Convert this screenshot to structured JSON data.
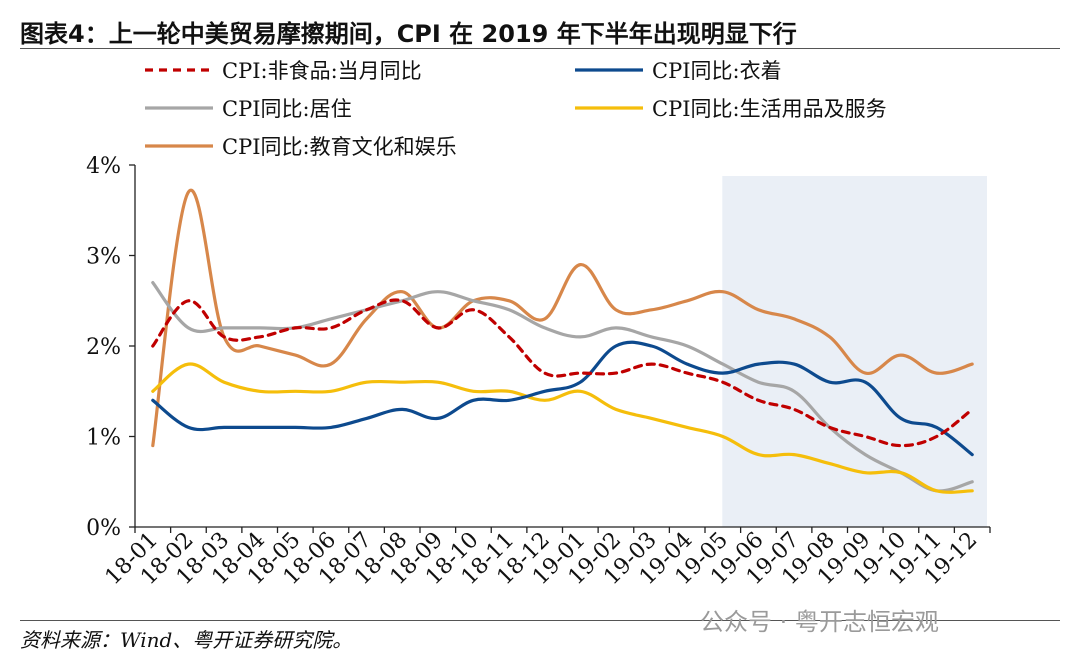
{
  "header": {
    "title": "图表4：上一轮中美贸易摩擦期间，CPI 在 2019 年下半年出现明显下行"
  },
  "footer": {
    "source": "资料来源：Wind、粤开证券研究院。",
    "watermark": "公众号 · 粤开志恒宏观"
  },
  "chart_data": {
    "type": "line",
    "title": "",
    "xlabel": "",
    "ylabel": "",
    "ylim": [
      0,
      4
    ],
    "yticks": [
      "0%",
      "1%",
      "2%",
      "3%",
      "4%"
    ],
    "grid": false,
    "legend_position": "top",
    "highlight_region": [
      "19-05",
      "19-12"
    ],
    "categories": [
      "18-01",
      "18-02",
      "18-03",
      "18-04",
      "18-05",
      "18-06",
      "18-07",
      "18-08",
      "18-09",
      "18-10",
      "18-11",
      "18-12",
      "19-01",
      "19-02",
      "19-03",
      "19-04",
      "19-05",
      "19-06",
      "19-07",
      "19-08",
      "19-09",
      "19-10",
      "19-11",
      "19-12"
    ],
    "series": [
      {
        "name": "CPI:非食品:当月同比",
        "color": "#C00000",
        "dash": true,
        "values": [
          2.0,
          2.5,
          2.1,
          2.1,
          2.2,
          2.2,
          2.4,
          2.5,
          2.2,
          2.4,
          2.1,
          1.7,
          1.7,
          1.7,
          1.8,
          1.7,
          1.6,
          1.4,
          1.3,
          1.1,
          1.0,
          0.9,
          1.0,
          1.3
        ]
      },
      {
        "name": "CPI同比:衣着",
        "color": "#0D4A8E",
        "dash": false,
        "values": [
          1.4,
          1.1,
          1.1,
          1.1,
          1.1,
          1.1,
          1.2,
          1.3,
          1.2,
          1.4,
          1.4,
          1.5,
          1.6,
          2.0,
          2.0,
          1.8,
          1.7,
          1.8,
          1.8,
          1.6,
          1.6,
          1.2,
          1.1,
          0.8
        ]
      },
      {
        "name": "CPI同比:居住",
        "color": "#A6A6A6",
        "dash": false,
        "values": [
          2.7,
          2.2,
          2.2,
          2.2,
          2.2,
          2.3,
          2.4,
          2.5,
          2.6,
          2.5,
          2.4,
          2.2,
          2.1,
          2.2,
          2.1,
          2.0,
          1.8,
          1.6,
          1.5,
          1.1,
          0.8,
          0.6,
          0.4,
          0.5
        ]
      },
      {
        "name": "CPI同比:生活用品及服务",
        "color": "#F5BE0B",
        "dash": false,
        "values": [
          1.5,
          1.8,
          1.6,
          1.5,
          1.5,
          1.5,
          1.6,
          1.6,
          1.6,
          1.5,
          1.5,
          1.4,
          1.5,
          1.3,
          1.2,
          1.1,
          1.0,
          0.8,
          0.8,
          0.7,
          0.6,
          0.6,
          0.4,
          0.4
        ]
      },
      {
        "name": "CPI同比:教育文化和娱乐",
        "color": "#D7874A",
        "dash": false,
        "values": [
          0.9,
          3.7,
          2.1,
          2.0,
          1.9,
          1.8,
          2.3,
          2.6,
          2.2,
          2.5,
          2.5,
          2.3,
          2.9,
          2.4,
          2.4,
          2.5,
          2.6,
          2.4,
          2.3,
          2.1,
          1.7,
          1.9,
          1.7,
          1.8
        ]
      }
    ]
  }
}
